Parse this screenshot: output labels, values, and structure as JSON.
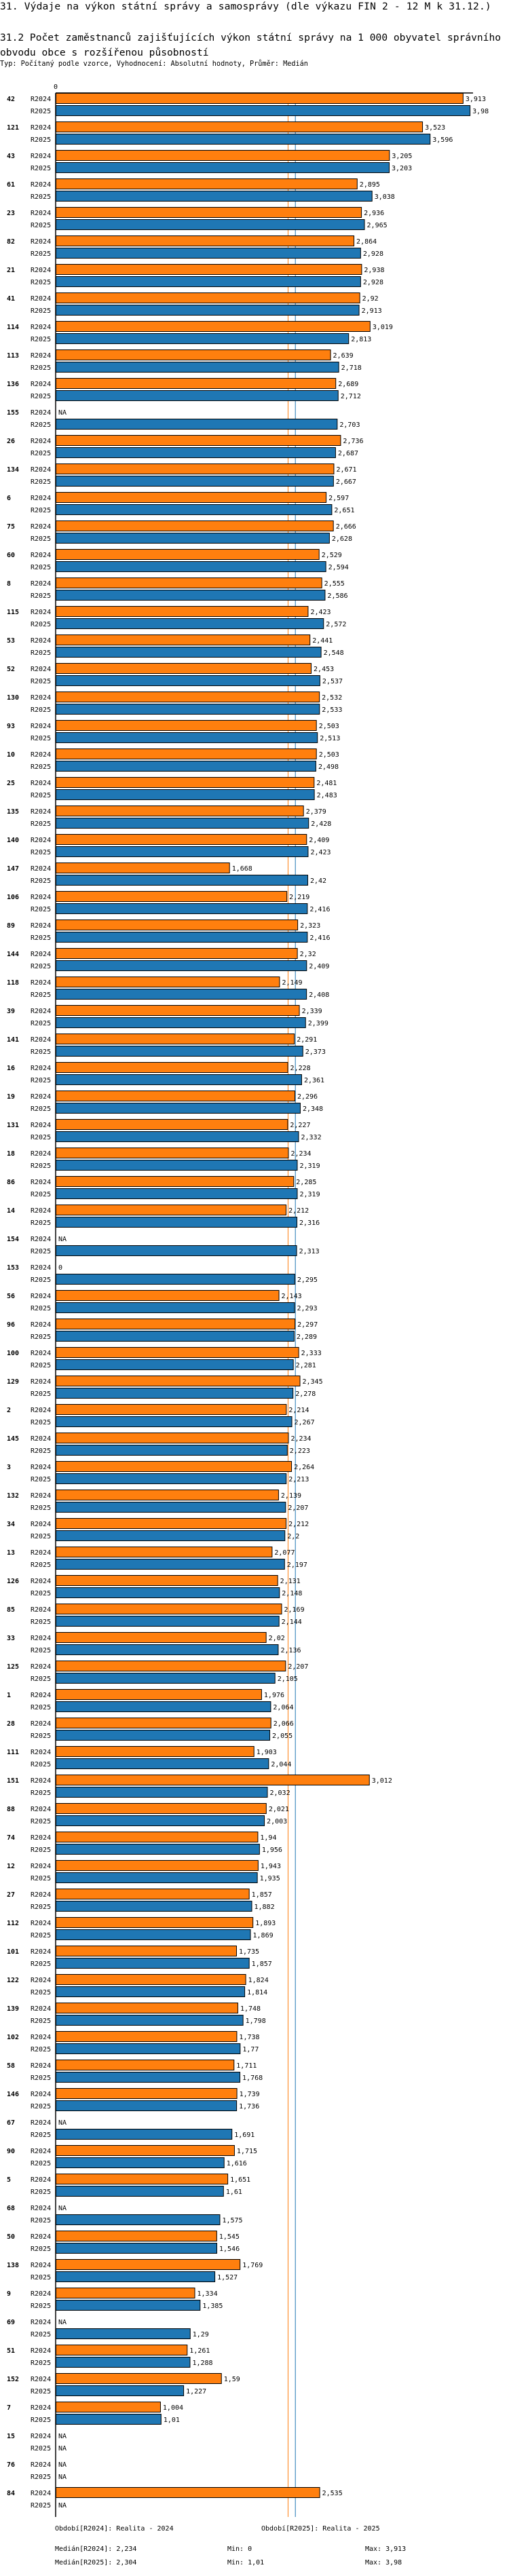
{
  "header": {
    "title": "31. Výdaje na výkon státní správy a samosprávy (dle výkazu FIN 2 - 12 M k 31.12.)",
    "subtitle": "31.2 Počet zaměstnanců zajišťujících výkon státní správy na 1 000 obyvatel správního obvodu obce s rozšířenou působností",
    "meta": "Typ: Počítaný podle vzorce, Vyhodnocení: Absolutní hodnoty, Průměr: Medián"
  },
  "chart_data": {
    "type": "bar",
    "orientation": "horizontal",
    "axis_tick_label": "0",
    "xlim": [
      0,
      4
    ],
    "na_label": "NA",
    "series": [
      {
        "name": "R2024",
        "color": "#ff7f0e",
        "median": 2.234,
        "median_label": "Medián[R2024]: 2,234",
        "min_label": "Min: 0",
        "max_label": "Max: 3,913",
        "legend": "Období[R2024]: Realita - 2024"
      },
      {
        "name": "R2025",
        "color": "#1f77b4",
        "median": 2.304,
        "median_label": "Medián[R2025]: 2,304",
        "min_label": "Min: 1,01",
        "max_label": "Max: 3,98",
        "legend": "Období[R2025]: Realita - 2025"
      }
    ],
    "groups": [
      [
        "42",
        3.913,
        3.98
      ],
      [
        "121",
        3.523,
        3.596
      ],
      [
        "43",
        3.205,
        3.203
      ],
      [
        "61",
        2.895,
        3.038
      ],
      [
        "23",
        2.936,
        2.965
      ],
      [
        "82",
        2.864,
        2.928
      ],
      [
        "21",
        2.938,
        2.928
      ],
      [
        "41",
        2.92,
        2.913
      ],
      [
        "114",
        3.019,
        2.813
      ],
      [
        "113",
        2.639,
        2.718
      ],
      [
        "136",
        2.689,
        2.712
      ],
      [
        "155",
        null,
        2.703
      ],
      [
        "26",
        2.736,
        2.687
      ],
      [
        "134",
        2.671,
        2.667
      ],
      [
        "6",
        2.597,
        2.651
      ],
      [
        "75",
        2.666,
        2.628
      ],
      [
        "60",
        2.529,
        2.594
      ],
      [
        "8",
        2.555,
        2.586
      ],
      [
        "115",
        2.423,
        2.572
      ],
      [
        "53",
        2.441,
        2.548
      ],
      [
        "52",
        2.453,
        2.537
      ],
      [
        "130",
        2.532,
        2.533
      ],
      [
        "93",
        2.503,
        2.513
      ],
      [
        "10",
        2.503,
        2.498
      ],
      [
        "25",
        2.481,
        2.483
      ],
      [
        "135",
        2.379,
        2.428
      ],
      [
        "140",
        2.409,
        2.423
      ],
      [
        "147",
        1.668,
        2.42
      ],
      [
        "106",
        2.219,
        2.416
      ],
      [
        "89",
        2.323,
        2.416
      ],
      [
        "144",
        2.32,
        2.409
      ],
      [
        "118",
        2.149,
        2.408
      ],
      [
        "39",
        2.339,
        2.399
      ],
      [
        "141",
        2.291,
        2.373
      ],
      [
        "16",
        2.228,
        2.361
      ],
      [
        "19",
        2.296,
        2.348
      ],
      [
        "131",
        2.227,
        2.332
      ],
      [
        "18",
        2.234,
        2.319
      ],
      [
        "86",
        2.285,
        2.319
      ],
      [
        "14",
        2.212,
        2.316
      ],
      [
        "154",
        null,
        2.313
      ],
      [
        "153",
        0,
        2.295
      ],
      [
        "56",
        2.143,
        2.293
      ],
      [
        "96",
        2.297,
        2.289
      ],
      [
        "100",
        2.333,
        2.281
      ],
      [
        "129",
        2.345,
        2.278
      ],
      [
        "2",
        2.214,
        2.267
      ],
      [
        "145",
        2.234,
        2.223
      ],
      [
        "3",
        2.264,
        2.213
      ],
      [
        "132",
        2.139,
        2.207
      ],
      [
        "34",
        2.212,
        2.2
      ],
      [
        "13",
        2.077,
        2.197
      ],
      [
        "126",
        2.131,
        2.148
      ],
      [
        "85",
        2.169,
        2.144
      ],
      [
        "33",
        2.02,
        2.136
      ],
      [
        "125",
        2.207,
        2.105
      ],
      [
        "1",
        1.976,
        2.064
      ],
      [
        "28",
        2.066,
        2.055
      ],
      [
        "111",
        1.903,
        2.044
      ],
      [
        "151",
        3.012,
        2.032
      ],
      [
        "88",
        2.021,
        2.003
      ],
      [
        "74",
        1.94,
        1.956
      ],
      [
        "12",
        1.943,
        1.935
      ],
      [
        "27",
        1.857,
        1.882
      ],
      [
        "112",
        1.893,
        1.869
      ],
      [
        "101",
        1.735,
        1.857
      ],
      [
        "122",
        1.824,
        1.814
      ],
      [
        "139",
        1.748,
        1.798
      ],
      [
        "102",
        1.738,
        1.77
      ],
      [
        "58",
        1.711,
        1.768
      ],
      [
        "146",
        1.739,
        1.736
      ],
      [
        "67",
        null,
        1.691
      ],
      [
        "90",
        1.715,
        1.616
      ],
      [
        "5",
        1.651,
        1.61
      ],
      [
        "68",
        null,
        1.575
      ],
      [
        "50",
        1.545,
        1.546
      ],
      [
        "138",
        1.769,
        1.527
      ],
      [
        "9",
        1.334,
        1.385
      ],
      [
        "69",
        null,
        1.29
      ],
      [
        "51",
        1.261,
        1.288
      ],
      [
        "152",
        1.59,
        1.227
      ],
      [
        "7",
        1.004,
        1.01
      ],
      [
        "15",
        null,
        null
      ],
      [
        "76",
        null,
        null
      ],
      [
        "84",
        2.535,
        null
      ]
    ]
  }
}
